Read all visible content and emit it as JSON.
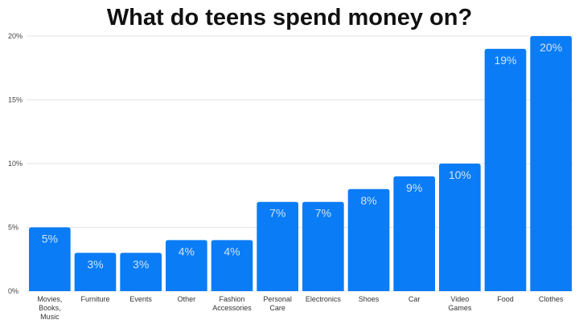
{
  "chart_data": {
    "type": "bar",
    "title": "What do teens spend money on?",
    "categories": [
      [
        "Movies,",
        "Books,",
        "Music"
      ],
      [
        "Furniture"
      ],
      [
        "Events"
      ],
      [
        "Other"
      ],
      [
        "Fashion",
        "Accessories"
      ],
      [
        "Personal",
        "Care"
      ],
      [
        "Electronics"
      ],
      [
        "Shoes"
      ],
      [
        "Car"
      ],
      [
        "Video",
        "Games"
      ],
      [
        "Food"
      ],
      [
        "Clothes"
      ]
    ],
    "values": [
      5,
      3,
      3,
      4,
      4,
      7,
      7,
      8,
      9,
      10,
      19,
      20
    ],
    "data_labels": [
      "5%",
      "3%",
      "3%",
      "4%",
      "4%",
      "7%",
      "7%",
      "8%",
      "9%",
      "10%",
      "19%",
      "20%"
    ],
    "yticks": [
      0,
      5,
      10,
      15,
      20
    ],
    "ytick_labels": [
      "0%",
      "5%",
      "10%",
      "15%",
      "20%"
    ],
    "ylim": [
      0,
      20
    ],
    "grid": true,
    "bar_color": "#0a7cf5",
    "xlabel": "",
    "ylabel": ""
  }
}
